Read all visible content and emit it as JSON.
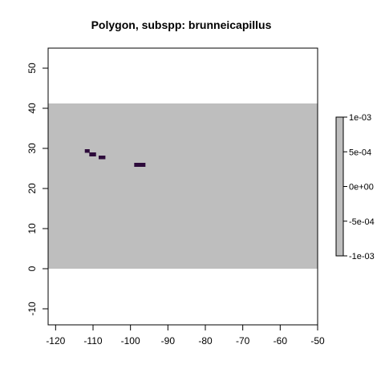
{
  "chart_data": {
    "type": "heatmap",
    "title": "Polygon, subspp: brunneicapillus",
    "xlabel": "",
    "ylabel": "",
    "xlim": [
      -122,
      -50
    ],
    "ylim": [
      -14,
      55
    ],
    "x_ticks": [
      -120,
      -110,
      -100,
      -90,
      -80,
      -70,
      -60,
      -50
    ],
    "y_ticks": [
      -10,
      0,
      10,
      20,
      30,
      40,
      50
    ],
    "raster_extent": {
      "xmin": -122,
      "xmax": -50,
      "ymin": 0,
      "ymax": 41.2
    },
    "background_value": 0,
    "cells": [
      {
        "xmin": -112.2,
        "xmax": -110.9,
        "ymin": 28.9,
        "ymax": 29.8
      },
      {
        "xmin": -111.0,
        "xmax": -109.2,
        "ymin": 28.0,
        "ymax": 29.0
      },
      {
        "xmin": -108.5,
        "xmax": -106.7,
        "ymin": 27.3,
        "ymax": 28.2
      },
      {
        "xmin": -99.0,
        "xmax": -96.0,
        "ymin": 25.4,
        "ymax": 26.4
      }
    ],
    "legend": {
      "ticks": [
        {
          "value": 0.001,
          "label": "1e-03"
        },
        {
          "value": 0.0005,
          "label": "5e-04"
        },
        {
          "value": 0,
          "label": "0e+00"
        },
        {
          "value": -0.0005,
          "label": "-5e-04"
        },
        {
          "value": -0.001,
          "label": "-1e-03"
        }
      ],
      "range": [
        -0.001,
        0.001
      ],
      "placement": "right"
    },
    "colors": {
      "raster_fill": "#bebebe",
      "cell_fill": "#2d0b3b",
      "axis": "#000000",
      "background": "#ffffff"
    }
  }
}
